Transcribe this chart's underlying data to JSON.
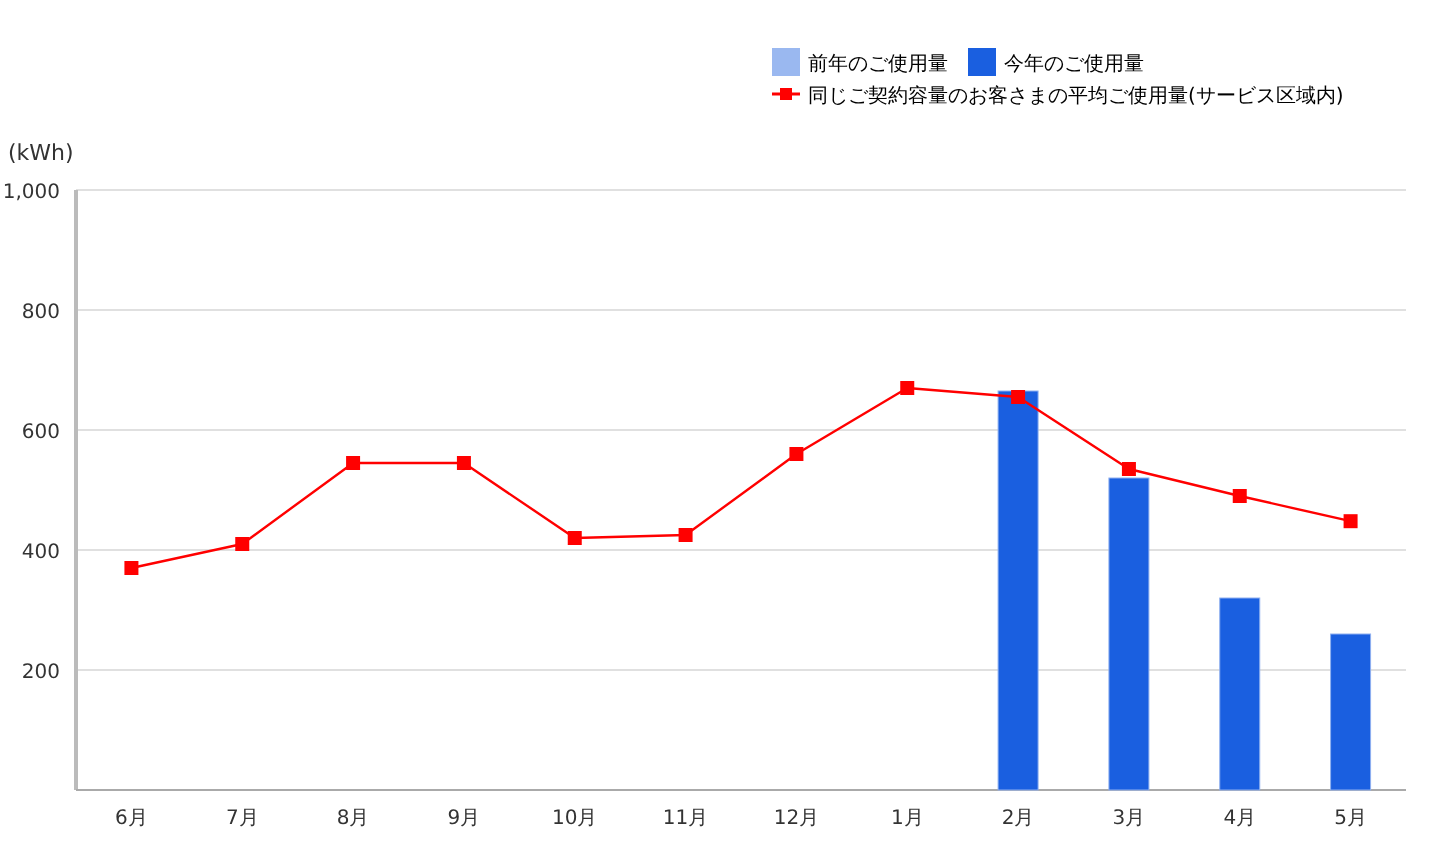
{
  "chart_data": {
    "type": "bar",
    "ylabel": "(kWh)",
    "categories": [
      "6月",
      "7月",
      "8月",
      "9月",
      "10月",
      "11月",
      "12月",
      "1月",
      "2月",
      "3月",
      "4月",
      "5月"
    ],
    "series": [
      {
        "name": "前年のご使用量",
        "color": "#9ab8f0",
        "values": [
          null,
          null,
          null,
          null,
          null,
          null,
          null,
          null,
          null,
          null,
          null,
          null
        ]
      },
      {
        "name": "今年のご使用量",
        "color": "#1a5fe0",
        "values": [
          null,
          null,
          null,
          null,
          null,
          null,
          null,
          null,
          665,
          520,
          320,
          260
        ]
      },
      {
        "name": "同じご契約容量のお客さまの平均ご使用量(サービス区域内)",
        "type": "line",
        "color": "#ff0000",
        "marker": "square",
        "values": [
          370,
          410,
          545,
          545,
          420,
          425,
          560,
          670,
          655,
          535,
          490,
          448
        ]
      }
    ],
    "ylim": [
      0,
      1000
    ],
    "yticks": [
      200,
      400,
      600,
      800,
      {
        "value": 1000,
        "label": "1,000"
      }
    ],
    "grid": "y",
    "legend": "top right"
  }
}
